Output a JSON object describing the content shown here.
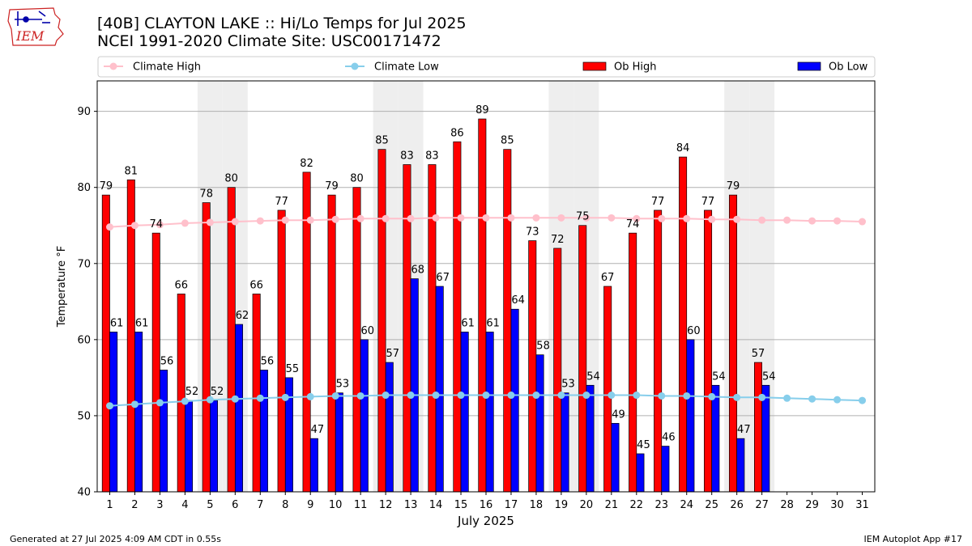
{
  "header": {
    "title_line1": "[40B] CLAYTON LAKE :: Hi/Lo Temps for Jul 2025",
    "title_line2": "NCEI 1991-2020 Climate Site: USC00171472",
    "logo_text": "IEM"
  },
  "footer": {
    "generated": "Generated at 27 Jul 2025 4:09 AM CDT in 0.55s",
    "app": "IEM Autoplot App #17"
  },
  "colors": {
    "ob_high": "#ff0000",
    "ob_low": "#0000ff",
    "climate_high": "#ffc0cb",
    "climate_low": "#87ceeb",
    "weekend_band": "#eeeeee",
    "grid": "#b0b0b0",
    "logo": "#cc2222"
  },
  "chart_data": {
    "type": "bar",
    "xlabel": "July 2025",
    "ylabel": "Temperature °F",
    "ylim": [
      40,
      94
    ],
    "yticks": [
      40,
      50,
      60,
      70,
      80,
      90
    ],
    "grid": true,
    "legend_position": "top",
    "weekend_days": [
      5,
      6,
      12,
      13,
      19,
      20,
      26,
      27
    ],
    "x": [
      1,
      2,
      3,
      4,
      5,
      6,
      7,
      8,
      9,
      10,
      11,
      12,
      13,
      14,
      15,
      16,
      17,
      18,
      19,
      20,
      21,
      22,
      23,
      24,
      25,
      26,
      27,
      28,
      29,
      30,
      31
    ],
    "series": [
      {
        "name": "Climate High",
        "kind": "line",
        "values": [
          74.8,
          75.0,
          75.1,
          75.3,
          75.4,
          75.5,
          75.6,
          75.7,
          75.7,
          75.8,
          75.9,
          75.9,
          75.9,
          76.0,
          76.0,
          76.0,
          76.0,
          76.0,
          76.0,
          76.0,
          76.0,
          75.9,
          75.9,
          75.9,
          75.8,
          75.8,
          75.7,
          75.7,
          75.6,
          75.6,
          75.5
        ]
      },
      {
        "name": "Climate Low",
        "kind": "line",
        "values": [
          51.3,
          51.5,
          51.7,
          51.9,
          52.1,
          52.2,
          52.3,
          52.4,
          52.5,
          52.6,
          52.6,
          52.7,
          52.7,
          52.7,
          52.7,
          52.7,
          52.7,
          52.7,
          52.7,
          52.7,
          52.7,
          52.7,
          52.6,
          52.6,
          52.5,
          52.4,
          52.4,
          52.3,
          52.2,
          52.1,
          52.0
        ]
      },
      {
        "name": "Ob High",
        "kind": "bar",
        "values": [
          79,
          81,
          74,
          66,
          78,
          80,
          66,
          77,
          82,
          79,
          80,
          85,
          83,
          83,
          86,
          89,
          85,
          73,
          72,
          75,
          67,
          74,
          77,
          84,
          77,
          79,
          57,
          null,
          null,
          null,
          null
        ]
      },
      {
        "name": "Ob Low",
        "kind": "bar",
        "values": [
          61,
          61,
          56,
          52,
          52,
          62,
          56,
          55,
          47,
          53,
          60,
          57,
          68,
          67,
          61,
          61,
          64,
          58,
          53,
          54,
          49,
          45,
          46,
          60,
          54,
          47,
          54,
          null,
          null,
          null,
          null
        ]
      }
    ]
  }
}
